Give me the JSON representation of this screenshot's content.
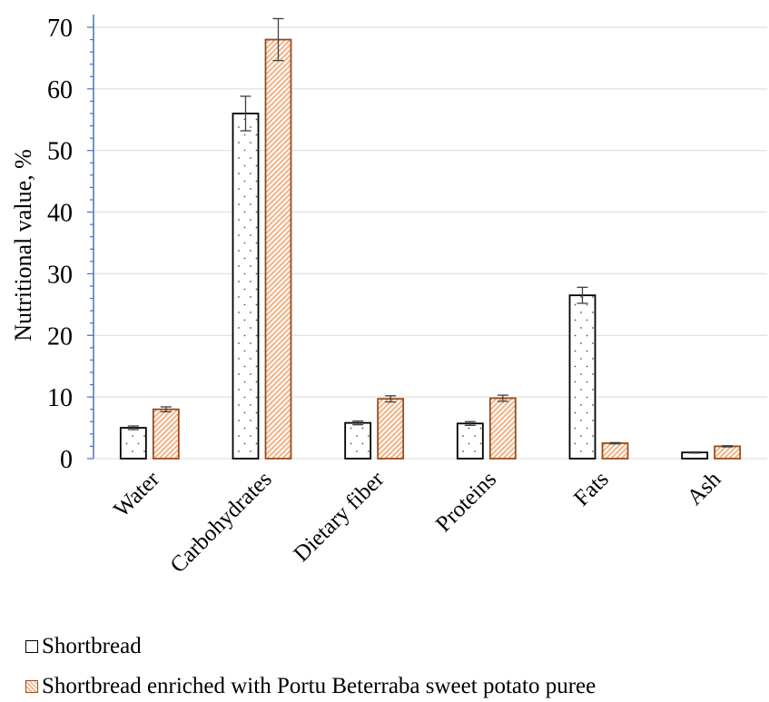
{
  "chart_data": {
    "type": "bar",
    "title": "",
    "xlabel": "",
    "ylabel": "Nutritional value, %",
    "ylim": [
      0,
      70
    ],
    "yticks": [
      0,
      10,
      20,
      30,
      40,
      50,
      60,
      70
    ],
    "categories": [
      "Water",
      "Carbohydrates",
      "Dietary fiber",
      "Proteins",
      "Fats",
      "Ash"
    ],
    "series": [
      {
        "name": "Shortbread",
        "values": [
          5.0,
          56.0,
          5.8,
          5.7,
          26.5,
          1.0
        ],
        "errors": [
          0.3,
          2.8,
          0.3,
          0.3,
          1.3,
          0.1
        ],
        "fill": "#ffffff",
        "edge": "#000000",
        "pattern": "dots"
      },
      {
        "name": "Shortbread enriched with Portu Beterraba sweet potato puree",
        "values": [
          8.0,
          68.0,
          9.7,
          9.8,
          2.5,
          2.0
        ],
        "errors": [
          0.4,
          3.4,
          0.5,
          0.5,
          0.1,
          0.1
        ],
        "fill": "#f4b183",
        "edge": "#9a4a1e",
        "pattern": "diagonal"
      }
    ],
    "grid": true,
    "error_bar_color": "#404040",
    "legend_position": "bottom-left"
  }
}
